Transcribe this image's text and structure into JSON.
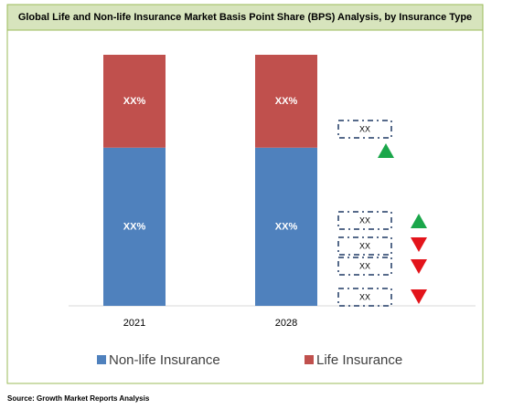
{
  "chart_data": {
    "type": "bar",
    "stacked": true,
    "title": "Global Life and Non-life Insurance Market Basis Point Share (BPS) Analysis, by Insurance Type",
    "categories": [
      "2021",
      "2028"
    ],
    "series": [
      {
        "name": "Non-life Insurance",
        "color": "#4f81bd",
        "values": [
          63,
          63
        ],
        "value_labels": [
          "XX%",
          "XX%"
        ]
      },
      {
        "name": "Life Insurance",
        "color": "#c0504d",
        "values": [
          37,
          37
        ],
        "value_labels": [
          "XX%",
          "XX%"
        ]
      }
    ],
    "ylim": [
      0,
      100
    ],
    "annotations": [
      {
        "label": "XX",
        "direction": "up",
        "color": "#1aa64a"
      },
      {
        "label": "XX",
        "direction": "up",
        "color": "#1aa64a"
      },
      {
        "label": "XX",
        "direction": "down",
        "color": "#e3141b"
      },
      {
        "label": "XX",
        "direction": "down",
        "color": "#e3141b"
      },
      {
        "label": "XX",
        "direction": "down",
        "color": "#e3141b"
      }
    ],
    "source": "Source: Growth Market Reports Analysis"
  }
}
